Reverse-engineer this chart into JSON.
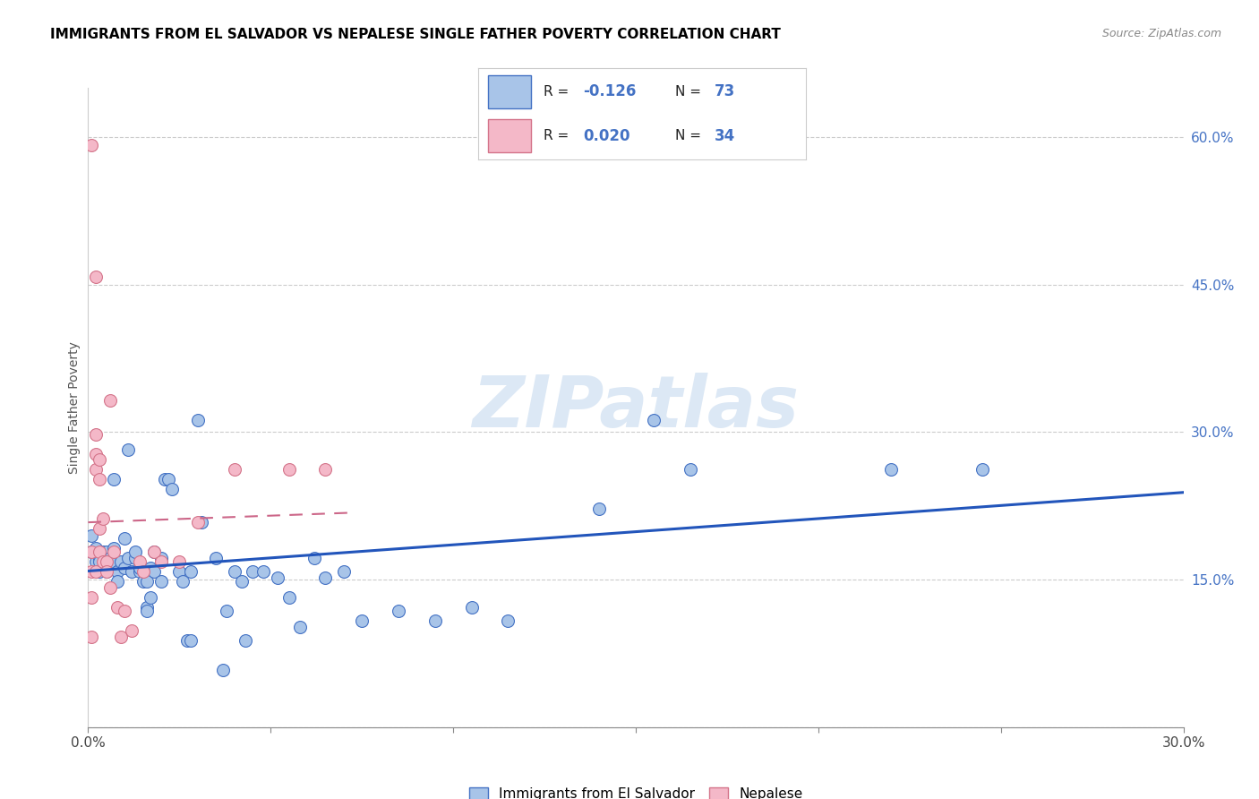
{
  "title": "IMMIGRANTS FROM EL SALVADOR VS NEPALESE SINGLE FATHER POVERTY CORRELATION CHART",
  "source": "Source: ZipAtlas.com",
  "ylabel": "Single Father Poverty",
  "x_min": 0.0,
  "x_max": 0.3,
  "y_min": 0.0,
  "y_max": 0.65,
  "x_ticks": [
    0.0,
    0.05,
    0.1,
    0.15,
    0.2,
    0.25,
    0.3
  ],
  "x_tick_labels": [
    "0.0%",
    "",
    "",
    "",
    "",
    "",
    "30.0%"
  ],
  "y_ticks_right": [
    0.0,
    0.15,
    0.3,
    0.45,
    0.6
  ],
  "y_tick_labels_right": [
    "",
    "15.0%",
    "30.0%",
    "45.0%",
    "60.0%"
  ],
  "legend_label_1": "Immigrants from El Salvador",
  "legend_label_2": "Nepalese",
  "color_blue": "#a8c4e8",
  "color_pink": "#f4b8c8",
  "color_blue_dark": "#4472c4",
  "color_pink_dark": "#d4748a",
  "color_trendline_blue": "#2255bb",
  "color_trendline_pink": "#cc6688",
  "watermark_color": "#dce8f5",
  "blue_x": [
    0.001,
    0.001,
    0.002,
    0.002,
    0.003,
    0.003,
    0.003,
    0.004,
    0.004,
    0.005,
    0.005,
    0.005,
    0.005,
    0.006,
    0.006,
    0.007,
    0.007,
    0.008,
    0.008,
    0.009,
    0.01,
    0.01,
    0.011,
    0.011,
    0.012,
    0.013,
    0.013,
    0.014,
    0.014,
    0.015,
    0.016,
    0.016,
    0.016,
    0.017,
    0.017,
    0.018,
    0.018,
    0.02,
    0.02,
    0.021,
    0.022,
    0.023,
    0.025,
    0.026,
    0.027,
    0.028,
    0.028,
    0.03,
    0.031,
    0.035,
    0.037,
    0.038,
    0.04,
    0.042,
    0.043,
    0.045,
    0.048,
    0.052,
    0.055,
    0.058,
    0.062,
    0.065,
    0.07,
    0.075,
    0.085,
    0.095,
    0.105,
    0.115,
    0.14,
    0.155,
    0.165,
    0.22,
    0.245
  ],
  "blue_y": [
    0.195,
    0.178,
    0.182,
    0.168,
    0.172,
    0.168,
    0.158,
    0.162,
    0.178,
    0.158,
    0.162,
    0.168,
    0.178,
    0.172,
    0.168,
    0.252,
    0.182,
    0.158,
    0.148,
    0.168,
    0.192,
    0.162,
    0.172,
    0.282,
    0.158,
    0.172,
    0.178,
    0.158,
    0.162,
    0.148,
    0.122,
    0.118,
    0.148,
    0.132,
    0.162,
    0.158,
    0.178,
    0.172,
    0.148,
    0.252,
    0.252,
    0.242,
    0.158,
    0.148,
    0.088,
    0.088,
    0.158,
    0.312,
    0.208,
    0.172,
    0.058,
    0.118,
    0.158,
    0.148,
    0.088,
    0.158,
    0.158,
    0.152,
    0.132,
    0.102,
    0.172,
    0.152,
    0.158,
    0.108,
    0.118,
    0.108,
    0.122,
    0.108,
    0.222,
    0.312,
    0.262,
    0.262,
    0.262
  ],
  "pink_x": [
    0.001,
    0.001,
    0.001,
    0.001,
    0.001,
    0.002,
    0.002,
    0.002,
    0.002,
    0.002,
    0.003,
    0.003,
    0.003,
    0.003,
    0.004,
    0.004,
    0.005,
    0.005,
    0.006,
    0.006,
    0.007,
    0.008,
    0.009,
    0.01,
    0.012,
    0.014,
    0.015,
    0.018,
    0.02,
    0.025,
    0.03,
    0.04,
    0.055,
    0.065
  ],
  "pink_y": [
    0.592,
    0.178,
    0.158,
    0.132,
    0.092,
    0.458,
    0.298,
    0.278,
    0.262,
    0.158,
    0.272,
    0.252,
    0.202,
    0.178,
    0.212,
    0.168,
    0.168,
    0.158,
    0.332,
    0.142,
    0.178,
    0.122,
    0.092,
    0.118,
    0.098,
    0.168,
    0.158,
    0.178,
    0.168,
    0.168,
    0.208,
    0.262,
    0.262,
    0.262
  ]
}
